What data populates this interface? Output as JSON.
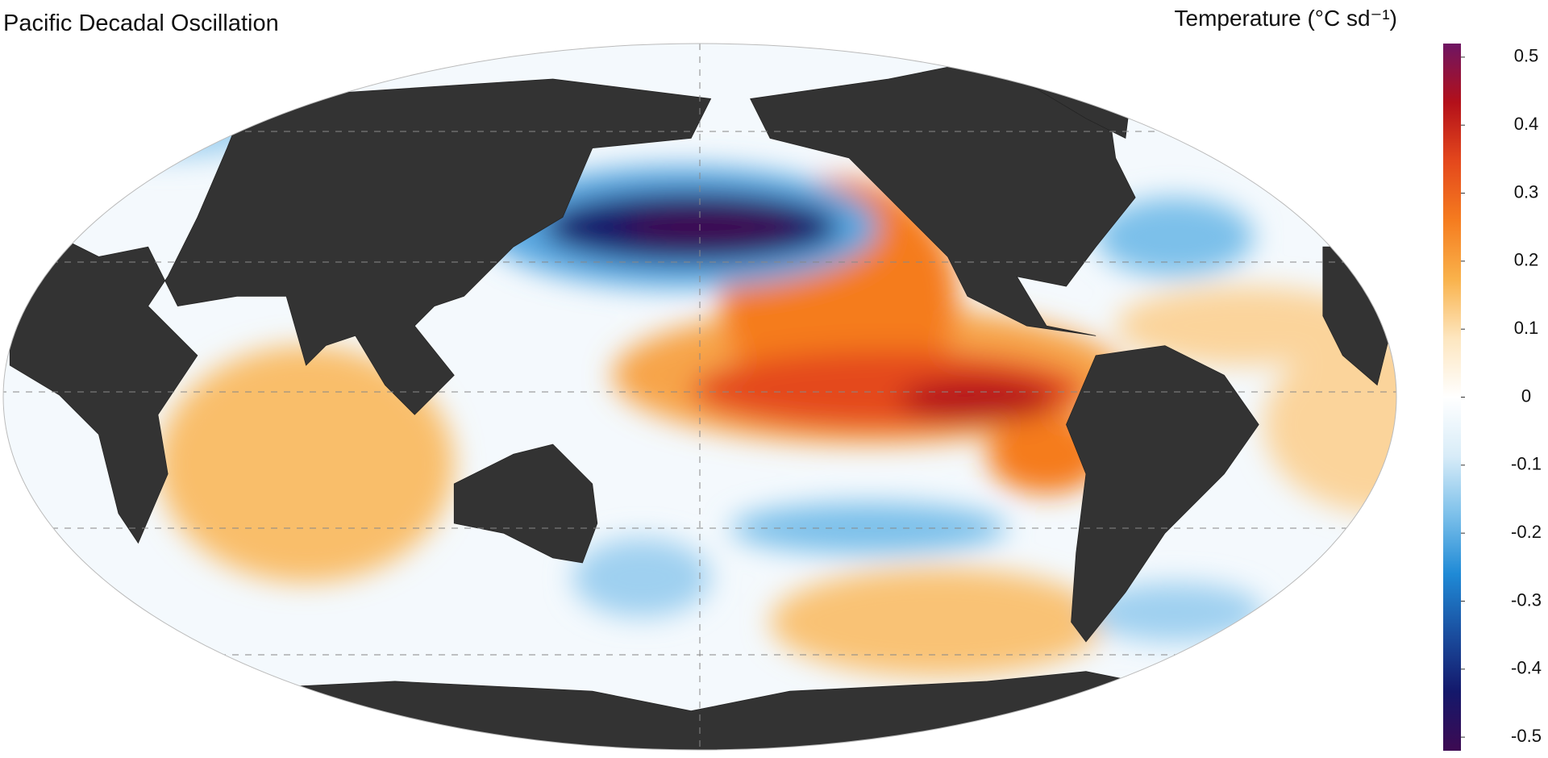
{
  "title": "Pacific Decadal Oscillation",
  "colorbar": {
    "label": "Temperature (°C sd⁻¹)",
    "lim": [
      -0.52,
      0.52
    ],
    "ticks": [
      0.5,
      0.4,
      0.3,
      0.2,
      0.1,
      0,
      -0.1,
      -0.2,
      -0.3,
      -0.4,
      -0.5
    ],
    "colors": [
      "#3d0a52",
      "#14186b",
      "#1a4fa0",
      "#1f8ad6",
      "#7cc0ea",
      "#d8ecf8",
      "#ffffff",
      "#fde6bf",
      "#f9b24b",
      "#f57c1f",
      "#e4481c",
      "#b3101a",
      "#6e1563"
    ]
  }
}
